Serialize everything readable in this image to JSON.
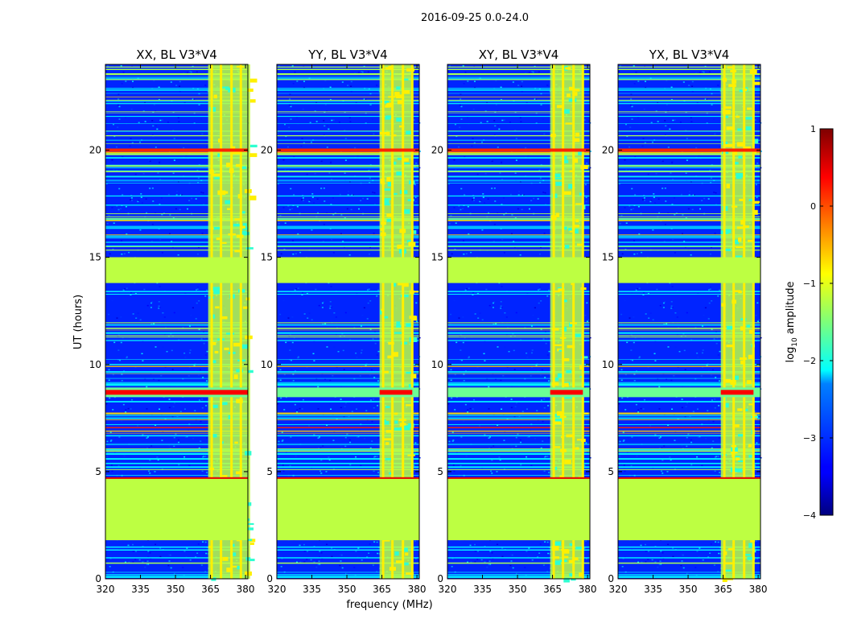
{
  "figure": {
    "title": "2016-09-25 0.0-24.0",
    "xlabel": "frequency (MHz)",
    "ylabel": "UT (hours)"
  },
  "colorbar": {
    "label_prefix": "log",
    "label_sub": "10",
    "label_suffix": " amplitude",
    "range": [
      -4,
      1
    ],
    "ticks": [
      1,
      0,
      -1,
      -2,
      -3,
      -4
    ],
    "tick_labels": [
      "1",
      "0",
      "−1",
      "−2",
      "−3",
      "−4"
    ],
    "colormap": "jet"
  },
  "chart_data": [
    {
      "type": "heatmap",
      "title": "XX, BL V3*V4",
      "x_ticks": [
        320,
        335,
        350,
        365,
        380
      ],
      "y_ticks": [
        0,
        5,
        10,
        15,
        20
      ],
      "xlim": [
        320,
        381
      ],
      "ylim": [
        0,
        24
      ],
      "value_units": "log10 amplitude",
      "background_level": -3.2,
      "flagged_ut_ranges": [
        [
          1.8,
          4.7
        ],
        [
          13.8,
          15.0
        ]
      ],
      "flagged_level": -1.2,
      "bright_band_mhz": [
        364,
        382
      ],
      "band_channels_mhz": [
        365.5,
        369.5,
        374.0,
        378.0
      ],
      "rfi_peak_ut": 8.7
    },
    {
      "type": "heatmap",
      "title": "YY, BL V3*V4",
      "x_ticks": [
        320,
        335,
        350,
        365,
        380
      ],
      "y_ticks": [
        0,
        5,
        10,
        15,
        20
      ],
      "xlim": [
        320,
        381
      ],
      "ylim": [
        0,
        24
      ],
      "value_units": "log10 amplitude",
      "background_level": -3.2,
      "flagged_ut_ranges": [
        [
          1.8,
          4.7
        ],
        [
          13.8,
          15.0
        ]
      ],
      "flagged_level": -1.2,
      "bright_band_mhz": [
        364,
        378
      ],
      "band_channels_mhz": [
        365.5,
        369.5,
        374.0,
        378.0
      ],
      "rfi_peak_ut": 8.7
    },
    {
      "type": "heatmap",
      "title": "XY, BL V3*V4",
      "x_ticks": [
        320,
        335,
        350,
        365,
        380
      ],
      "y_ticks": [
        0,
        5,
        10,
        15,
        20
      ],
      "xlim": [
        320,
        381
      ],
      "ylim": [
        0,
        24
      ],
      "value_units": "log10 amplitude",
      "background_level": -3.2,
      "flagged_ut_ranges": [
        [
          1.8,
          4.7
        ],
        [
          13.8,
          15.0
        ]
      ],
      "flagged_level": -1.2,
      "bright_band_mhz": [
        364,
        378
      ],
      "band_channels_mhz": [
        365.5,
        369.5,
        374.0,
        378.0
      ],
      "rfi_peak_ut": 8.7
    },
    {
      "type": "heatmap",
      "title": "YX, BL V3*V4",
      "x_ticks": [
        320,
        335,
        350,
        365,
        380
      ],
      "y_ticks": [
        0,
        5,
        10,
        15,
        20
      ],
      "xlim": [
        320,
        381
      ],
      "ylim": [
        0,
        24
      ],
      "value_units": "log10 amplitude",
      "background_level": -3.2,
      "flagged_ut_ranges": [
        [
          1.8,
          4.7
        ],
        [
          13.8,
          15.0
        ]
      ],
      "flagged_level": -1.2,
      "bright_band_mhz": [
        364,
        378
      ],
      "band_channels_mhz": [
        365.5,
        369.5,
        374.0,
        378.0
      ],
      "rfi_peak_ut": 8.7
    }
  ]
}
